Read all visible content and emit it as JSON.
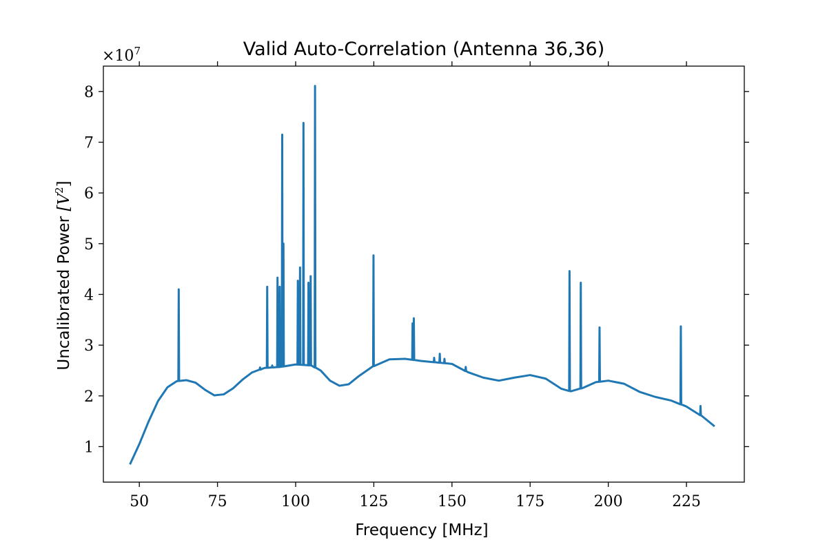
{
  "chart_data": {
    "type": "line",
    "title": "Valid Auto-Correlation (Antenna 36,36)",
    "xlabel": "Frequency [MHz]",
    "ylabel_text": "Uncalibrated Power ",
    "ylabel_unit": "[V",
    "ylabel_sup": "2",
    "ylabel_close": "]",
    "y_multiplier_text": "×10",
    "y_multiplier_exp": "7",
    "xlim": [
      38.5,
      243.5
    ],
    "ylim": [
      0.3,
      8.5
    ],
    "x_ticks": [
      50,
      75,
      100,
      125,
      150,
      175,
      200,
      225
    ],
    "y_ticks": [
      1,
      2,
      3,
      4,
      5,
      6,
      7,
      8
    ],
    "series": [
      {
        "color": "#1f77b4",
        "baseline": [
          [
            47,
            0.65
          ],
          [
            50,
            1.05
          ],
          [
            53,
            1.5
          ],
          [
            56,
            1.9
          ],
          [
            59,
            2.17
          ],
          [
            62,
            2.29
          ],
          [
            65,
            2.31
          ],
          [
            68,
            2.26
          ],
          [
            71,
            2.12
          ],
          [
            74,
            2.01
          ],
          [
            77,
            2.03
          ],
          [
            80,
            2.15
          ],
          [
            83,
            2.32
          ],
          [
            86,
            2.46
          ],
          [
            90,
            2.55
          ],
          [
            95,
            2.57
          ],
          [
            100,
            2.62
          ],
          [
            105,
            2.6
          ],
          [
            108,
            2.5
          ],
          [
            111,
            2.3
          ],
          [
            114,
            2.2
          ],
          [
            117,
            2.23
          ],
          [
            120,
            2.38
          ],
          [
            125,
            2.59
          ],
          [
            130,
            2.72
          ],
          [
            135,
            2.73
          ],
          [
            140,
            2.69
          ],
          [
            145,
            2.66
          ],
          [
            150,
            2.63
          ],
          [
            155,
            2.47
          ],
          [
            160,
            2.36
          ],
          [
            165,
            2.3
          ],
          [
            170,
            2.36
          ],
          [
            175,
            2.41
          ],
          [
            180,
            2.34
          ],
          [
            185,
            2.14
          ],
          [
            188,
            2.09
          ],
          [
            192,
            2.16
          ],
          [
            196,
            2.27
          ],
          [
            200,
            2.3
          ],
          [
            205,
            2.24
          ],
          [
            210,
            2.08
          ],
          [
            215,
            1.98
          ],
          [
            220,
            1.91
          ],
          [
            225,
            1.79
          ],
          [
            230,
            1.6
          ],
          [
            234,
            1.4
          ]
        ],
        "spikes": [
          [
            62.6,
            4.1
          ],
          [
            88.6,
            2.56
          ],
          [
            90.9,
            4.15
          ],
          [
            92.5,
            2.6
          ],
          [
            94.2,
            4.33
          ],
          [
            94.9,
            4.15
          ],
          [
            95.7,
            7.15
          ],
          [
            96.1,
            5.0
          ],
          [
            100.7,
            4.27
          ],
          [
            101.4,
            4.53
          ],
          [
            102.5,
            7.38
          ],
          [
            104.1,
            4.23
          ],
          [
            104.8,
            4.36
          ],
          [
            106.2,
            8.11
          ],
          [
            124.9,
            4.77
          ],
          [
            137.4,
            3.43
          ],
          [
            137.8,
            3.53
          ],
          [
            144.3,
            2.75
          ],
          [
            146.1,
            2.83
          ],
          [
            147.6,
            2.73
          ],
          [
            154.4,
            2.57
          ],
          [
            187.6,
            4.46
          ],
          [
            191.2,
            4.23
          ],
          [
            197.2,
            3.35
          ],
          [
            223.2,
            3.37
          ],
          [
            229.5,
            1.8
          ]
        ]
      }
    ],
    "grid": false,
    "legend": "none"
  }
}
